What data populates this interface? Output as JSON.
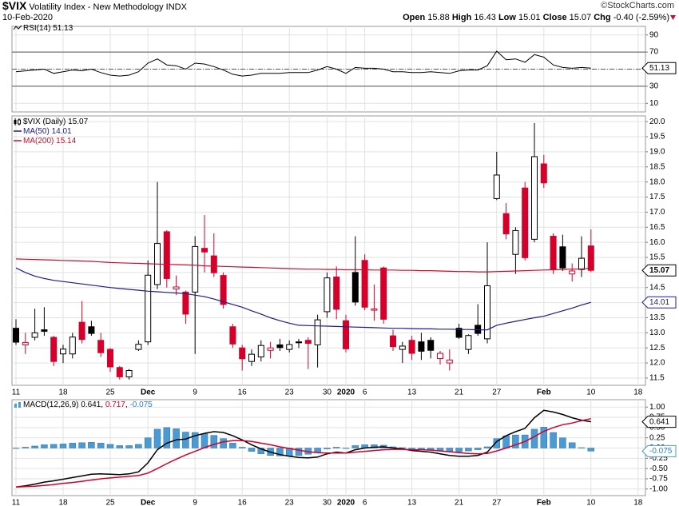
{
  "header": {
    "symbol": "$VIX",
    "name": "Volatility Index - New Methodology",
    "exchange": "INDX",
    "date": "10-Feb-2020",
    "source": "©StockCharts.com",
    "quote": [
      {
        "label": "Open",
        "value": "15.88"
      },
      {
        "label": "High",
        "value": "16.43"
      },
      {
        "label": "Low",
        "value": "15.01"
      },
      {
        "label": "Close",
        "value": "15.07"
      },
      {
        "label": "Chg",
        "value": "-0.40 (-2.59%)"
      }
    ]
  },
  "chart_data": [
    {
      "type": "line",
      "series": [
        {
          "name": "RSI(14)",
          "color": "#000000",
          "last_label": "51.13",
          "boxed": true,
          "values": [
            47,
            48,
            49,
            50,
            45,
            47,
            49,
            48,
            50,
            46,
            43,
            42,
            43,
            47,
            57,
            62,
            55,
            54,
            50,
            57,
            56,
            53,
            49,
            44,
            42,
            43,
            45,
            45,
            45,
            46,
            46,
            46,
            49,
            53,
            50,
            45,
            52,
            51,
            51,
            50,
            47,
            47,
            46,
            46,
            47,
            46,
            45,
            48,
            49,
            49,
            54,
            71,
            61,
            62,
            58,
            67,
            64,
            55,
            52,
            51,
            52,
            51.13,
            null,
            null,
            null,
            null,
            null
          ]
        }
      ],
      "ylim": [
        0,
        100
      ],
      "yticks": [
        10,
        30,
        50,
        70,
        90
      ],
      "reference_lines": [
        70,
        30
      ],
      "center_line": 50,
      "grid": true
    },
    {
      "type": "candlestick",
      "categories": [
        "11",
        null,
        null,
        null,
        null,
        "18",
        null,
        null,
        null,
        null,
        "25",
        null,
        null,
        null,
        "Dec",
        null,
        null,
        null,
        null,
        "9",
        null,
        null,
        null,
        null,
        "16",
        null,
        null,
        null,
        null,
        "23",
        null,
        null,
        null,
        "30",
        null,
        "2020",
        null,
        "6",
        null,
        null,
        null,
        null,
        "13",
        null,
        null,
        null,
        null,
        "21",
        null,
        null,
        null,
        "27",
        null,
        null,
        null,
        null,
        "Feb",
        null,
        null,
        null,
        null,
        "10",
        null,
        null,
        null,
        null,
        "18"
      ],
      "bold_categories": [
        14,
        35,
        56
      ],
      "series": [
        {
          "name": "$VIX (Daily)",
          "last_label": "15.07",
          "boxed": true,
          "up_color": "#000000",
          "down_color": "#d4002b",
          "open": [
            13.15,
            12.6,
            12.85,
            13.1,
            12.85,
            12.3,
            12.3,
            13.35,
            13.2,
            12.75,
            12.45,
            11.85,
            11.54,
            12.45,
            12.7,
            14.6,
            16.35,
            14.45,
            14.35,
            14.35,
            15.8,
            15.55,
            14.9,
            13.2,
            12.5,
            12.05,
            12.2,
            12.42,
            12.6,
            12.45,
            12.7,
            12.75,
            12.6,
            13.7,
            14.85,
            13.4,
            15.0,
            15.4,
            13.75,
            15.15,
            12.9,
            12.45,
            12.75,
            12.7,
            12.75,
            12.15,
            12.0,
            13.15,
            12.45,
            13.25,
            12.8,
            17.45,
            16.95,
            15.6,
            17.8,
            16.1,
            18.6,
            16.2,
            15.85,
            14.95,
            15.1,
            15.88,
            null,
            null,
            null,
            null,
            null
          ],
          "high": [
            13.45,
            13.0,
            13.8,
            13.85,
            12.9,
            12.6,
            13.0,
            14.05,
            13.4,
            13.0,
            12.5,
            11.9,
            11.8,
            12.75,
            15.4,
            18.0,
            16.4,
            14.9,
            14.4,
            16.2,
            16.9,
            16.3,
            15.0,
            13.3,
            12.6,
            12.45,
            12.75,
            12.7,
            12.8,
            12.75,
            12.8,
            12.85,
            13.6,
            15.0,
            15.2,
            13.6,
            16.2,
            15.6,
            14.6,
            15.2,
            13.1,
            12.7,
            12.9,
            13.0,
            12.85,
            12.4,
            12.45,
            13.3,
            12.95,
            13.95,
            16.0,
            19.0,
            17.3,
            16.5,
            18.0,
            19.95,
            18.9,
            16.3,
            16.25,
            15.3,
            16.2,
            16.43,
            null,
            null,
            null,
            null,
            null
          ],
          "low": [
            12.6,
            12.3,
            12.75,
            12.9,
            11.9,
            12.0,
            12.15,
            12.65,
            12.9,
            12.2,
            11.7,
            11.45,
            11.45,
            12.4,
            12.6,
            14.45,
            14.5,
            14.25,
            13.3,
            12.3,
            15.0,
            14.85,
            13.8,
            12.5,
            11.75,
            11.9,
            12.05,
            12.15,
            12.4,
            12.35,
            12.5,
            11.8,
            11.85,
            13.5,
            13.45,
            12.35,
            13.9,
            13.75,
            13.4,
            13.3,
            12.4,
            12.0,
            12.1,
            12.1,
            12.15,
            11.95,
            11.75,
            12.8,
            12.3,
            12.9,
            12.65,
            17.4,
            16.1,
            14.95,
            15.4,
            16.0,
            17.8,
            14.95,
            15.05,
            14.7,
            14.85,
            15.01,
            null,
            null,
            null,
            null,
            null
          ],
          "close": [
            12.69,
            12.68,
            13.0,
            13.05,
            12.05,
            12.46,
            12.86,
            12.78,
            12.98,
            12.34,
            11.87,
            11.54,
            11.75,
            12.62,
            14.91,
            15.96,
            14.8,
            14.52,
            13.62,
            15.86,
            15.68,
            14.99,
            13.94,
            12.63,
            12.14,
            12.29,
            12.58,
            12.5,
            12.51,
            12.61,
            12.67,
            12.65,
            13.43,
            14.82,
            13.78,
            12.47,
            14.02,
            13.85,
            13.79,
            13.45,
            12.54,
            12.56,
            12.32,
            12.39,
            12.42,
            12.32,
            12.1,
            12.85,
            12.91,
            12.98,
            14.56,
            18.23,
            16.28,
            16.39,
            15.49,
            18.84,
            17.97,
            15.1,
            15.15,
            15.05,
            15.47,
            15.07,
            null,
            null,
            null,
            null,
            null
          ]
        },
        {
          "name": "MA(50)",
          "color": "#1c1c8a",
          "last_label": "14.01",
          "boxed": true,
          "values": [
            15.15,
            15.0,
            14.88,
            14.8,
            14.74,
            14.7,
            14.66,
            14.62,
            14.58,
            14.54,
            14.5,
            14.47,
            14.44,
            14.41,
            14.38,
            14.36,
            14.34,
            14.32,
            14.3,
            14.25,
            14.2,
            14.12,
            14.03,
            13.94,
            13.85,
            13.73,
            13.62,
            13.5,
            13.4,
            13.32,
            13.25,
            13.24,
            13.23,
            13.22,
            13.21,
            13.2,
            13.19,
            13.18,
            13.17,
            13.16,
            13.15,
            13.15,
            13.14,
            13.13,
            13.13,
            13.12,
            13.12,
            13.11,
            13.11,
            13.1,
            13.1,
            13.25,
            13.32,
            13.38,
            13.44,
            13.5,
            13.55,
            13.64,
            13.73,
            13.82,
            13.92,
            14.01,
            null,
            null,
            null,
            null,
            null
          ]
        },
        {
          "name": "MA(200)",
          "color": "#c8102e",
          "last_label": "15.14",
          "values": [
            15.45,
            15.44,
            15.43,
            15.42,
            15.41,
            15.4,
            15.39,
            15.38,
            15.37,
            15.35,
            15.33,
            15.32,
            15.31,
            15.3,
            15.29,
            15.28,
            15.27,
            15.26,
            15.25,
            15.24,
            15.22,
            15.21,
            15.2,
            15.19,
            15.18,
            15.17,
            15.16,
            15.15,
            15.14,
            15.13,
            15.12,
            15.11,
            15.11,
            15.1,
            15.1,
            15.09,
            15.09,
            15.09,
            15.08,
            15.08,
            15.08,
            15.07,
            15.07,
            15.06,
            15.06,
            15.05,
            15.04,
            15.03,
            15.03,
            15.02,
            15.02,
            15.03,
            15.04,
            15.05,
            15.06,
            15.07,
            15.08,
            15.09,
            15.1,
            15.11,
            15.12,
            15.14,
            null,
            null,
            null,
            null,
            null
          ]
        }
      ],
      "ylim": [
        11.26,
        20.19
      ],
      "yticks": [
        11.5,
        {
          "value": 12,
          "label": "12.0"
        },
        12.5,
        {
          "value": 13,
          "label": "13.0"
        },
        13.5,
        {
          "value": 14,
          "label": "14.0"
        },
        14.5,
        {
          "value": 15,
          "label": "15.0"
        },
        15.5,
        {
          "value": 16,
          "label": "16.0"
        },
        16.5,
        {
          "value": 17,
          "label": "17.0"
        },
        17.5,
        {
          "value": 18,
          "label": "18.0"
        },
        18.5,
        {
          "value": 19,
          "label": "19.0"
        },
        19.5,
        {
          "value": 20,
          "label": "20.0"
        }
      ],
      "grid": true
    },
    {
      "type": "macd",
      "legend": "MACD(12,26,9)",
      "categories": [
        "11",
        null,
        null,
        null,
        null,
        "18",
        null,
        null,
        null,
        null,
        "25",
        null,
        null,
        null,
        "Dec",
        null,
        null,
        null,
        null,
        "9",
        null,
        null,
        null,
        null,
        "16",
        null,
        null,
        null,
        null,
        "23",
        null,
        null,
        null,
        "30",
        null,
        "2020",
        null,
        "6",
        null,
        null,
        null,
        null,
        "13",
        null,
        null,
        null,
        null,
        "21",
        null,
        null,
        null,
        "27",
        null,
        null,
        null,
        null,
        "Feb",
        null,
        null,
        null,
        null,
        "10",
        null,
        null,
        null,
        null,
        "18"
      ],
      "bold_categories": [
        14,
        35,
        56
      ],
      "series": [
        {
          "color": "#000000",
          "last_label": "0.641",
          "boxed": true,
          "values": [
            -0.95,
            -0.92,
            -0.88,
            -0.83,
            -0.8,
            -0.76,
            -0.72,
            -0.68,
            -0.64,
            -0.63,
            -0.64,
            -0.65,
            -0.63,
            -0.58,
            -0.36,
            -0.04,
            0.12,
            0.2,
            0.22,
            0.3,
            0.36,
            0.4,
            0.38,
            0.3,
            0.2,
            0.08,
            -0.02,
            -0.1,
            -0.16,
            -0.2,
            -0.23,
            -0.24,
            -0.22,
            -0.14,
            -0.1,
            -0.12,
            -0.04,
            0.0,
            0.02,
            0.03,
            0.0,
            -0.02,
            -0.06,
            -0.08,
            -0.1,
            -0.14,
            -0.18,
            -0.2,
            -0.2,
            -0.18,
            -0.1,
            0.16,
            0.3,
            0.4,
            0.48,
            0.74,
            0.92,
            0.88,
            0.82,
            0.74,
            0.68,
            0.641,
            null,
            null,
            null,
            null,
            null
          ]
        },
        {
          "color": "#d4002b",
          "last_label": "0.717",
          "values": [
            -0.95,
            -0.94,
            -0.93,
            -0.91,
            -0.89,
            -0.86,
            -0.84,
            -0.81,
            -0.78,
            -0.75,
            -0.73,
            -0.71,
            -0.69,
            -0.67,
            -0.61,
            -0.5,
            -0.38,
            -0.27,
            -0.17,
            -0.08,
            0.01,
            0.09,
            0.15,
            0.18,
            0.18,
            0.16,
            0.12,
            0.08,
            0.03,
            -0.01,
            -0.05,
            -0.09,
            -0.11,
            -0.12,
            -0.12,
            -0.12,
            -0.1,
            -0.08,
            -0.06,
            -0.04,
            -0.03,
            -0.03,
            -0.04,
            -0.04,
            -0.05,
            -0.07,
            -0.09,
            -0.11,
            -0.13,
            -0.14,
            -0.13,
            -0.07,
            0.0,
            0.08,
            0.16,
            0.28,
            0.41,
            0.5,
            0.57,
            0.61,
            0.67,
            0.717,
            null,
            null,
            null,
            null,
            null
          ]
        },
        {
          "type": "histogram",
          "color": "#4a9ad4",
          "last_label": "-0.075",
          "boxed": true,
          "values": [
            0.0,
            0.02,
            0.05,
            0.08,
            0.09,
            0.1,
            0.12,
            0.13,
            0.14,
            0.12,
            0.09,
            0.06,
            0.06,
            0.09,
            0.25,
            0.46,
            0.5,
            0.47,
            0.39,
            0.38,
            0.35,
            0.31,
            0.23,
            0.12,
            0.02,
            -0.08,
            -0.14,
            -0.18,
            -0.19,
            -0.19,
            -0.18,
            -0.15,
            -0.11,
            -0.02,
            0.02,
            0.0,
            0.06,
            0.08,
            0.08,
            0.07,
            0.03,
            0.01,
            -0.02,
            -0.04,
            -0.05,
            -0.07,
            -0.09,
            -0.09,
            -0.07,
            -0.04,
            0.03,
            0.23,
            0.3,
            0.32,
            0.32,
            0.46,
            0.51,
            0.38,
            0.25,
            0.13,
            0.01,
            -0.075,
            null,
            null,
            null,
            null,
            null
          ]
        }
      ],
      "ylim": [
        -1.16,
        1.18
      ],
      "yticks": [
        {
          "value": 1,
          "label": "1.00"
        },
        0.75,
        {
          "value": 0.5,
          "label": "0.50"
        },
        0.25,
        {
          "value": 0,
          "label": "0.00"
        },
        -0.25,
        {
          "value": -0.5,
          "label": "-0.50"
        },
        -0.75,
        {
          "value": -1,
          "label": "-1.00"
        }
      ],
      "grid": true
    }
  ]
}
